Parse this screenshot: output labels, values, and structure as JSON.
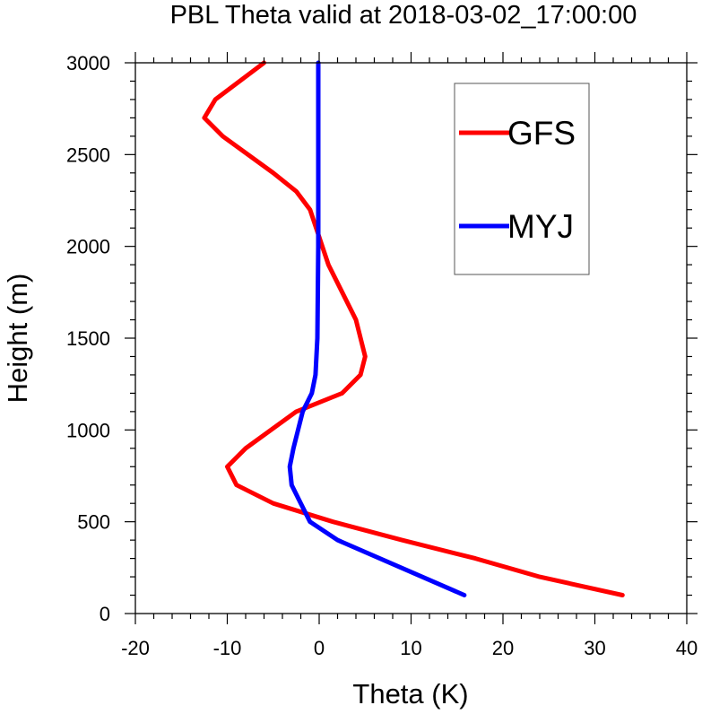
{
  "chart_data": {
    "type": "line",
    "title": "PBL Theta valid at 2018-03-02_17:00:00",
    "xlabel": "Theta (K)",
    "ylabel": "Height (m)",
    "xlim": [
      -20,
      40
    ],
    "ylim": [
      0,
      3000
    ],
    "xticks": [
      -20,
      -10,
      0,
      10,
      20,
      30,
      40
    ],
    "yticks": [
      0,
      500,
      1000,
      1500,
      2000,
      2500,
      3000
    ],
    "grid": false,
    "legend_position": "top-right",
    "series": [
      {
        "name": "GFS",
        "color": "#ff0000",
        "points": [
          [
            33,
            100
          ],
          [
            24,
            200
          ],
          [
            17,
            300
          ],
          [
            9,
            400
          ],
          [
            1.5,
            500
          ],
          [
            -5,
            600
          ],
          [
            -9,
            700
          ],
          [
            -10,
            800
          ],
          [
            -8,
            900
          ],
          [
            -2.5,
            1100
          ],
          [
            2.5,
            1200
          ],
          [
            4.5,
            1300
          ],
          [
            5,
            1400
          ],
          [
            4,
            1600
          ],
          [
            1,
            1900
          ],
          [
            -1,
            2200
          ],
          [
            -2.5,
            2300
          ],
          [
            -5,
            2400
          ],
          [
            -10.5,
            2600
          ],
          [
            -12.5,
            2700
          ],
          [
            -11.3,
            2800
          ],
          [
            -6,
            3000
          ]
        ]
      },
      {
        "name": "MYJ",
        "color": "#0000ff",
        "points": [
          [
            15.8,
            100
          ],
          [
            2,
            400
          ],
          [
            -1,
            500
          ],
          [
            -2,
            600
          ],
          [
            -3,
            700
          ],
          [
            -3.2,
            800
          ],
          [
            -2.8,
            900
          ],
          [
            -1.8,
            1100
          ],
          [
            -0.8,
            1200
          ],
          [
            -0.4,
            1300
          ],
          [
            -0.2,
            1500
          ],
          [
            -0.1,
            2000
          ],
          [
            -0.1,
            3000
          ]
        ]
      }
    ]
  }
}
